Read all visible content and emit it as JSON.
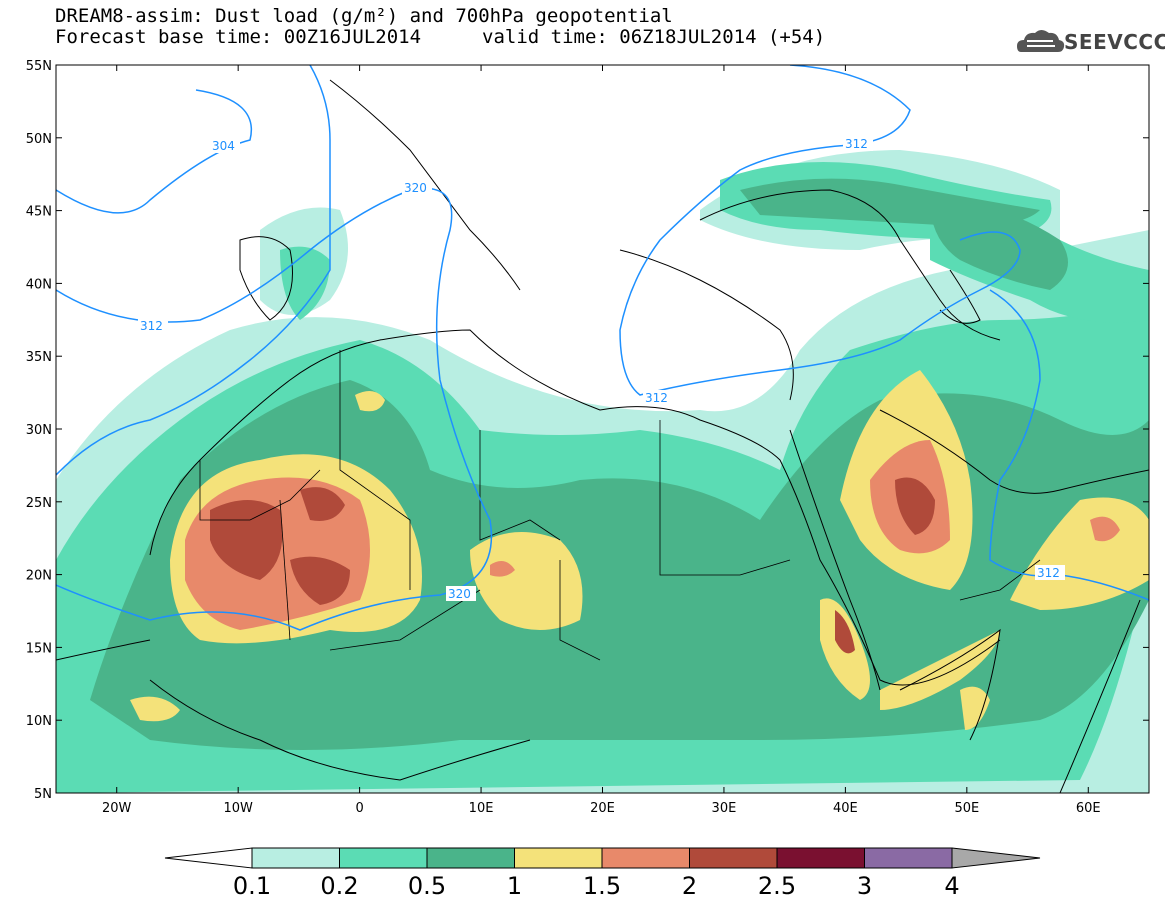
{
  "title": {
    "line1": "DREAM8-assim: Dust load (g/m²) and 700hPa geopotential",
    "line2": "Forecast base time: 00Z16JUL2014",
    "valid": "valid time: 06Z18JUL2014 (+54)"
  },
  "logo": {
    "text": "SEEVCCC",
    "icon": "cloud-icon"
  },
  "map": {
    "lat_ticks": [
      "55N",
      "50N",
      "45N",
      "40N",
      "35N",
      "30N",
      "25N",
      "20N",
      "15N",
      "10N",
      "5N"
    ],
    "lon_ticks": [
      "20W",
      "10W",
      "0",
      "10E",
      "20E",
      "30E",
      "40E",
      "50E",
      "60E"
    ],
    "lon_range": [
      -25,
      65
    ],
    "lat_range": [
      5,
      55
    ]
  },
  "contours": {
    "color": "#1e90ff",
    "labels": [
      "304",
      "320",
      "312",
      "312",
      "312",
      "320",
      "312"
    ]
  },
  "colorbar": {
    "levels": [
      "0.1",
      "0.2",
      "0.5",
      "1",
      "1.5",
      "2",
      "2.5",
      "3",
      "4"
    ],
    "colors": [
      "#b8eee2",
      "#5bdcb4",
      "#4ab48a",
      "#f4e27a",
      "#e8896a",
      "#b04a3a",
      "#7a1030",
      "#8a6aa4",
      "#a8a8a8"
    ]
  }
}
